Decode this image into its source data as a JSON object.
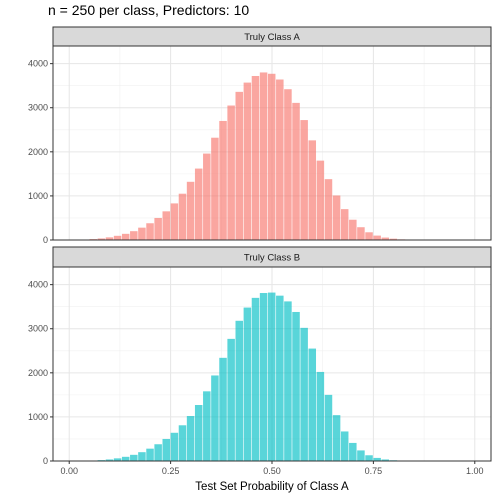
{
  "title": "n = 250 per class, Predictors: 10",
  "chart_data": {
    "type": "bar",
    "xlabel": "Test Set Probability of Class A",
    "ylabel": "",
    "xlim": [
      -0.04,
      1.04
    ],
    "ylim": [
      0,
      4400
    ],
    "x_ticks": [
      0,
      0.25,
      0.5,
      0.75,
      1
    ],
    "x_tick_labels": [
      "0.00",
      "0.25",
      "0.50",
      "0.75",
      "1.00"
    ],
    "y_ticks": [
      0,
      1000,
      2000,
      3000,
      4000
    ],
    "y_tick_labels": [
      "0",
      "1000",
      "2000",
      "3000",
      "4000"
    ],
    "grid": true,
    "bin_width": 0.02,
    "facets": [
      {
        "name": "Truly Class A",
        "color": "#F8766D",
        "x": [
          0.02,
          0.04,
          0.06,
          0.08,
          0.1,
          0.12,
          0.14,
          0.16,
          0.18,
          0.2,
          0.22,
          0.24,
          0.26,
          0.28,
          0.3,
          0.32,
          0.34,
          0.36,
          0.38,
          0.4,
          0.42,
          0.44,
          0.46,
          0.48,
          0.5,
          0.52,
          0.54,
          0.56,
          0.58,
          0.6,
          0.62,
          0.64,
          0.66,
          0.68,
          0.7,
          0.72,
          0.74,
          0.76,
          0.78,
          0.8,
          0.82,
          0.84,
          0.86,
          0.88,
          0.9,
          0.92,
          0.94,
          0.96,
          0.98
        ],
        "values": [
          5,
          10,
          20,
          35,
          60,
          95,
          140,
          200,
          280,
          380,
          500,
          650,
          830,
          1050,
          1320,
          1620,
          1960,
          2320,
          2700,
          3050,
          3360,
          3570,
          3720,
          3800,
          3770,
          3640,
          3420,
          3110,
          2720,
          2260,
          1800,
          1380,
          1010,
          700,
          460,
          290,
          175,
          100,
          55,
          30,
          15,
          8,
          4,
          2,
          1,
          0,
          0,
          0,
          0
        ]
      },
      {
        "name": "Truly Class B",
        "color": "#00BFC4",
        "x": [
          0.02,
          0.04,
          0.06,
          0.08,
          0.1,
          0.12,
          0.14,
          0.16,
          0.18,
          0.2,
          0.22,
          0.24,
          0.26,
          0.28,
          0.3,
          0.32,
          0.34,
          0.36,
          0.38,
          0.4,
          0.42,
          0.44,
          0.46,
          0.48,
          0.5,
          0.52,
          0.54,
          0.56,
          0.58,
          0.6,
          0.62,
          0.64,
          0.66,
          0.68,
          0.7,
          0.72,
          0.74,
          0.76,
          0.78,
          0.8,
          0.82,
          0.84,
          0.86,
          0.88,
          0.9,
          0.92,
          0.94,
          0.96,
          0.98
        ],
        "values": [
          2,
          5,
          10,
          20,
          35,
          60,
          95,
          140,
          200,
          280,
          380,
          500,
          640,
          810,
          1020,
          1270,
          1580,
          1940,
          2340,
          2770,
          3180,
          3480,
          3700,
          3810,
          3820,
          3750,
          3620,
          3380,
          3020,
          2550,
          2020,
          1500,
          1040,
          670,
          410,
          240,
          130,
          70,
          35,
          17,
          8,
          4,
          2,
          1,
          0,
          0,
          0,
          0,
          0
        ]
      }
    ]
  }
}
